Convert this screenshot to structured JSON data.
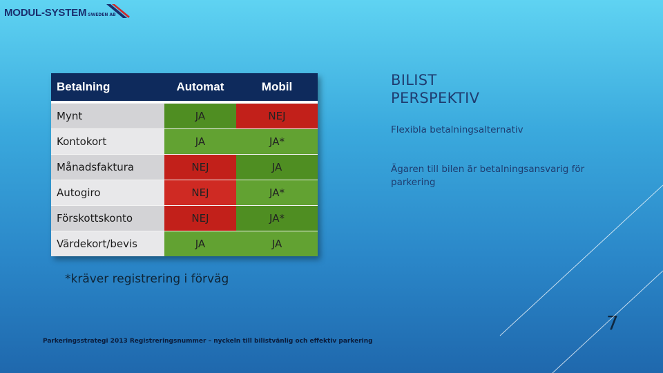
{
  "logo": {
    "name": "MODUL-SYSTEM",
    "sub": "SWEDEN AB"
  },
  "table": {
    "headers": [
      "Betalning",
      "Automat",
      "Mobil"
    ],
    "rows": [
      {
        "label": "Mynt",
        "automat": "JA",
        "mobil": "NEJ"
      },
      {
        "label": "Kontokort",
        "automat": "JA",
        "mobil": "JA*"
      },
      {
        "label": "Månadsfaktura",
        "automat": "NEJ",
        "mobil": "JA"
      },
      {
        "label": "Autogiro",
        "automat": "NEJ",
        "mobil": "JA*"
      },
      {
        "label": "Förskottskonto",
        "automat": "NEJ",
        "mobil": "JA*"
      },
      {
        "label": "Värdekort/bevis",
        "automat": "JA",
        "mobil": "JA"
      }
    ]
  },
  "footnote": "*kräver registrering i förväg",
  "title": {
    "line1": "BILIST",
    "line2": "PERSPEKTIV"
  },
  "bullets": [
    "Flexibla betalningsalternativ",
    "Ägaren till bilen är betalningsansvarig för parkering"
  ],
  "footer": "Parkeringsstrategi 2013   Registreringsnummer – nyckeln till bilistvänlig och effektiv parkering",
  "page_number": "7",
  "colors": {
    "header": "#0e2a5c",
    "yes": "#62a232",
    "no": "#cf2a23",
    "title": "#1f3d70"
  }
}
